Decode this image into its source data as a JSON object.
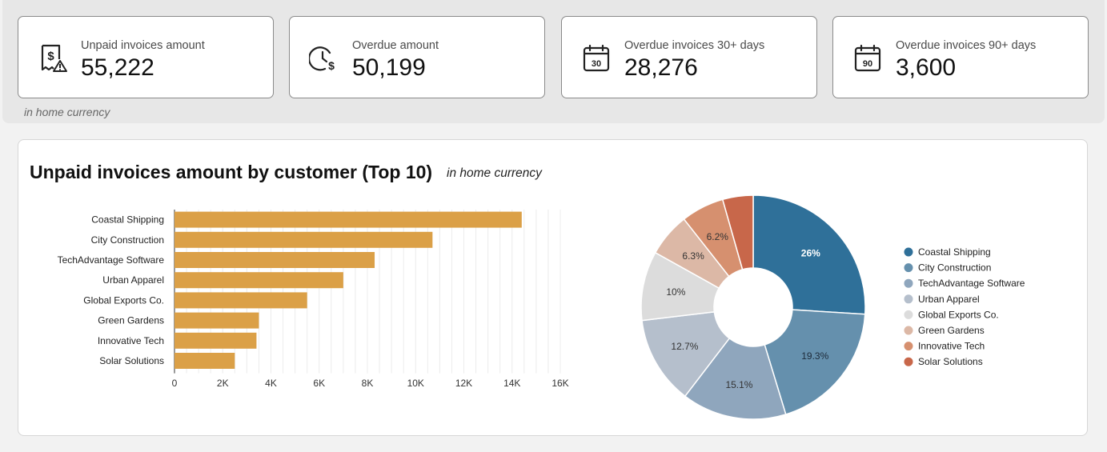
{
  "kpis": [
    {
      "label": "Unpaid invoices amount",
      "value": "55,222",
      "icon": "receipt-dollar-warning-icon"
    },
    {
      "label": "Overdue amount",
      "value": "50,199",
      "icon": "clock-dollar-icon"
    },
    {
      "label": "Overdue invoices 30+ days",
      "value": "28,276",
      "icon": "calendar-30-icon"
    },
    {
      "label": "Overdue invoices 90+ days",
      "value": "3,600",
      "icon": "calendar-90-icon"
    }
  ],
  "kpi_note": "in home currency",
  "panel": {
    "title": "Unpaid invoices amount by customer (Top 10)",
    "subtitle": "in home currency"
  },
  "colors": {
    "bar": "#dba047",
    "pie": [
      "#2f7099",
      "#6590ad",
      "#8fa6bd",
      "#b5bfcc",
      "#dcdcdc",
      "#dcb8a6",
      "#d6906f",
      "#c8674a"
    ]
  },
  "chart_data": [
    {
      "type": "bar",
      "orientation": "horizontal",
      "categories": [
        "Coastal Shipping",
        "City Construction",
        "TechAdvantage Software",
        "Urban Apparel",
        "Global Exports Co.",
        "Green Gardens",
        "Innovative Tech",
        "Solar Solutions"
      ],
      "values": [
        14400,
        10700,
        8300,
        7000,
        5500,
        3500,
        3400,
        2500
      ],
      "xlim": [
        0,
        16000
      ],
      "xticks": [
        "0",
        "2K",
        "4K",
        "6K",
        "8K",
        "10K",
        "12K",
        "14K",
        "16K"
      ],
      "grid": true
    },
    {
      "type": "pie",
      "donut": true,
      "labels": [
        "Coastal Shipping",
        "City Construction",
        "TechAdvantage Software",
        "Urban Apparel",
        "Global Exports Co.",
        "Green Gardens",
        "Innovative Tech",
        "Solar Solutions"
      ],
      "values": [
        26,
        19.3,
        15.1,
        12.7,
        10,
        6.3,
        6.2,
        4.4
      ],
      "value_labels": [
        "26%",
        "19.3%",
        "15.1%",
        "12.7%",
        "10%",
        "6.3%",
        "6.2%",
        ""
      ],
      "legend": "right"
    }
  ]
}
